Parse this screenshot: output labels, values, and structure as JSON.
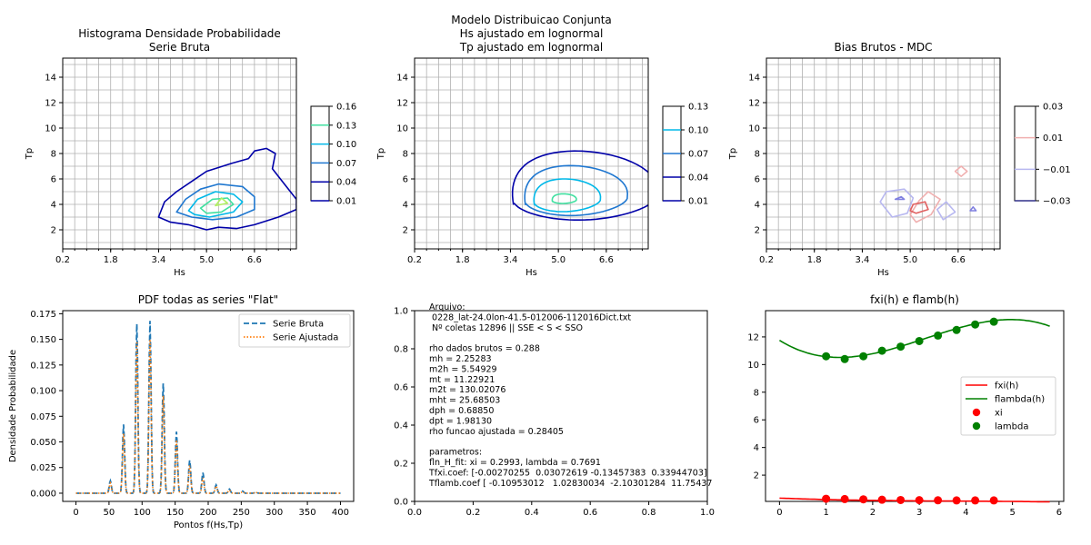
{
  "panels": {
    "p1": {
      "title": [
        "Histograma Densidade Probabilidade",
        "Serie Bruta"
      ],
      "xlabel": "Hs",
      "ylabel": "Tp",
      "colorbar_ticks": [
        "0.16",
        "0.13",
        "0.10",
        "0.07",
        "0.04",
        "0.01"
      ]
    },
    "p2": {
      "title": [
        "Modelo Distribuicao Conjunta",
        "Hs ajustado em lognormal",
        "Tp ajustado em lognormal"
      ],
      "xlabel": "Hs",
      "ylabel": "Tp",
      "colorbar_ticks": [
        "0.13",
        "0.10",
        "0.07",
        "0.04",
        "0.01"
      ]
    },
    "p3": {
      "title": [
        "Bias Brutos - MDC"
      ],
      "xlabel": "Hs",
      "ylabel": "Tp",
      "colorbar_ticks": [
        "0.03",
        "0.01",
        "−0.01",
        "−0.03"
      ]
    },
    "p4": {
      "title": [
        "PDF todas as series \"Flat\""
      ],
      "xlabel": "Pontos f(Hs,Tp)",
      "ylabel": "Densidade Probabilidade",
      "legend": [
        "Serie Bruta",
        "Serie Ajustada"
      ]
    },
    "p5": {
      "text_lines": [
        "Arquivo:",
        " 0228_lat-24.0lon-41.5-012006-112016Dict.txt",
        " Nº coletas 12896 || SSE < S < SSO",
        "",
        "rho dados brutos = 0.288",
        "mh = 2.25283",
        "m2h = 5.54929",
        "mt = 11.22921",
        "m2t = 130.02076",
        "mht = 25.68503",
        "dph = 0.68850",
        "dpt = 1.98130",
        "rho funcao ajustada = 0.28405",
        "",
        "parametros:",
        "fln_H_fit: xi = 0.2993, lambda = 0.7691",
        "Tfxi.coef: [-0.00270255  0.03072619 -0.13457383  0.33944703]",
        "Tflamb.coef [ -0.10953012   1.02830034  -2.10301284  11.75437"
      ]
    },
    "p6": {
      "title": [
        "fxi(h) e flamb(h)"
      ],
      "legend": [
        "fxi(h)",
        "flambda(h)",
        "xi",
        "lambda"
      ]
    }
  },
  "colors": {
    "blue_dashed": "#1f77b4",
    "orange_dotted": "#ff7f0e",
    "red": "#ff0000",
    "green": "#008000"
  },
  "chart_data": [
    {
      "id": "p1",
      "type": "contour",
      "xlim": [
        0.2,
        8.0
      ],
      "ylim": [
        0.5,
        15.5
      ],
      "xticks": [
        0.2,
        1.8,
        3.4,
        5.0,
        6.6
      ],
      "yticks": [
        2,
        4,
        6,
        8,
        10,
        12,
        14
      ],
      "grid": true,
      "levels": [
        0.01,
        0.04,
        0.07,
        0.1,
        0.13,
        0.16
      ],
      "contours": [
        {
          "level": 0.04,
          "color": "#0000a8",
          "points": [
            [
              3.4,
              3.0
            ],
            [
              3.6,
              4.2
            ],
            [
              4.0,
              5.0
            ],
            [
              4.5,
              5.8
            ],
            [
              5.0,
              6.6
            ],
            [
              5.8,
              7.2
            ],
            [
              6.4,
              7.6
            ],
            [
              6.6,
              8.2
            ],
            [
              7.0,
              8.4
            ],
            [
              7.3,
              8.0
            ],
            [
              7.2,
              6.8
            ],
            [
              7.6,
              5.6
            ],
            [
              8.0,
              4.4
            ],
            [
              8.0,
              3.6
            ],
            [
              7.4,
              3.0
            ],
            [
              6.6,
              2.4
            ],
            [
              6.0,
              2.1
            ],
            [
              5.4,
              2.2
            ],
            [
              5.0,
              2.0
            ],
            [
              4.4,
              2.4
            ],
            [
              3.8,
              2.6
            ],
            [
              3.4,
              3.0
            ]
          ]
        },
        {
          "level": 0.07,
          "color": "#1f77d0",
          "points": [
            [
              4.0,
              3.4
            ],
            [
              4.3,
              4.4
            ],
            [
              4.8,
              5.2
            ],
            [
              5.4,
              5.6
            ],
            [
              6.2,
              5.4
            ],
            [
              6.6,
              4.6
            ],
            [
              6.6,
              3.6
            ],
            [
              6.0,
              3.0
            ],
            [
              5.2,
              2.8
            ],
            [
              4.5,
              3.0
            ],
            [
              4.0,
              3.4
            ]
          ]
        },
        {
          "level": 0.1,
          "color": "#00b8e8",
          "points": [
            [
              4.4,
              3.5
            ],
            [
              4.7,
              4.4
            ],
            [
              5.3,
              5.0
            ],
            [
              5.9,
              4.8
            ],
            [
              6.2,
              4.2
            ],
            [
              5.9,
              3.4
            ],
            [
              5.1,
              3.0
            ],
            [
              4.6,
              3.2
            ],
            [
              4.4,
              3.5
            ]
          ]
        },
        {
          "level": 0.13,
          "color": "#40e0a0",
          "points": [
            [
              4.8,
              3.7
            ],
            [
              5.2,
              4.4
            ],
            [
              5.7,
              4.5
            ],
            [
              5.9,
              4.0
            ],
            [
              5.5,
              3.4
            ],
            [
              5.0,
              3.3
            ],
            [
              4.8,
              3.7
            ]
          ]
        },
        {
          "level": 0.16,
          "color": "#b0f060",
          "points": [
            [
              5.3,
              3.9
            ],
            [
              5.5,
              4.5
            ],
            [
              5.7,
              4.1
            ],
            [
              5.3,
              3.9
            ]
          ]
        }
      ]
    },
    {
      "id": "p2",
      "type": "contour",
      "xlim": [
        0.2,
        8.0
      ],
      "ylim": [
        0.5,
        15.5
      ],
      "xticks": [
        0.2,
        1.8,
        3.4,
        5.0,
        6.6
      ],
      "yticks": [
        2,
        4,
        6,
        8,
        10,
        12,
        14
      ],
      "grid": true,
      "levels": [
        0.01,
        0.04,
        0.07,
        0.1,
        0.13
      ],
      "contours": [
        {
          "level": 0.04,
          "color": "#0000a8",
          "ellipse": {
            "cx": 5.9,
            "cy": 4.4,
            "rx": 2.4,
            "ry": 3.6,
            "skew": 1.1
          }
        },
        {
          "level": 0.07,
          "color": "#1f77d0",
          "ellipse": {
            "cx": 5.6,
            "cy": 4.3,
            "rx": 1.7,
            "ry": 2.6,
            "skew": 0.9
          }
        },
        {
          "level": 0.1,
          "color": "#00b8e8",
          "ellipse": {
            "cx": 5.3,
            "cy": 4.2,
            "rx": 1.1,
            "ry": 1.7,
            "skew": 0.7
          }
        },
        {
          "level": 0.13,
          "color": "#40e0a0",
          "ellipse": {
            "cx": 5.2,
            "cy": 4.3,
            "rx": 0.4,
            "ry": 0.5,
            "skew": 0.2
          }
        }
      ]
    },
    {
      "id": "p3",
      "type": "contour",
      "xlim": [
        0.2,
        8.0
      ],
      "ylim": [
        0.5,
        15.5
      ],
      "xticks": [
        0.2,
        1.8,
        3.4,
        5.0,
        6.6
      ],
      "yticks": [
        2,
        4,
        6,
        8,
        10,
        12,
        14
      ],
      "grid": true,
      "levels": [
        -0.03,
        -0.01,
        0.01,
        0.03
      ],
      "contours": [
        {
          "level": -0.01,
          "color": "#b8b8f0",
          "points": [
            [
              4.0,
              4.2
            ],
            [
              4.2,
              5.0
            ],
            [
              4.8,
              5.2
            ],
            [
              5.1,
              4.5
            ],
            [
              4.9,
              3.3
            ],
            [
              4.4,
              3.0
            ],
            [
              4.0,
              4.2
            ]
          ]
        },
        {
          "level": -0.01,
          "color": "#b8b8f0",
          "points": [
            [
              5.9,
              3.6
            ],
            [
              6.2,
              4.2
            ],
            [
              6.5,
              3.4
            ],
            [
              6.1,
              2.8
            ],
            [
              5.9,
              3.6
            ]
          ]
        },
        {
          "level": -0.03,
          "color": "#8080e0",
          "points": [
            [
              4.5,
              4.4
            ],
            [
              4.7,
              4.6
            ],
            [
              4.8,
              4.4
            ],
            [
              4.5,
              4.4
            ]
          ]
        },
        {
          "level": -0.03,
          "color": "#8080e0",
          "points": [
            [
              7.0,
              3.5
            ],
            [
              7.1,
              3.8
            ],
            [
              7.2,
              3.5
            ],
            [
              7.0,
              3.5
            ]
          ]
        },
        {
          "level": 0.01,
          "color": "#f0b0b0",
          "points": [
            [
              5.0,
              3.2
            ],
            [
              5.3,
              4.3
            ],
            [
              5.6,
              5.0
            ],
            [
              6.0,
              4.4
            ],
            [
              5.7,
              3.2
            ],
            [
              5.2,
              2.6
            ],
            [
              5.0,
              3.2
            ]
          ]
        },
        {
          "level": 0.01,
          "color": "#f0b0b0",
          "points": [
            [
              6.5,
              6.6
            ],
            [
              6.7,
              7.0
            ],
            [
              6.9,
              6.6
            ],
            [
              6.7,
              6.2
            ],
            [
              6.5,
              6.6
            ]
          ]
        },
        {
          "level": 0.03,
          "color": "#e06060",
          "points": [
            [
              5.0,
              3.5
            ],
            [
              5.1,
              4.0
            ],
            [
              5.5,
              4.2
            ],
            [
              5.6,
              3.6
            ],
            [
              5.2,
              3.3
            ],
            [
              5.0,
              3.5
            ]
          ]
        }
      ]
    },
    {
      "id": "p4",
      "type": "line",
      "xlim": [
        -20,
        420
      ],
      "ylim": [
        -0.008,
        0.178
      ],
      "xticks": [
        0,
        50,
        100,
        150,
        200,
        250,
        300,
        350,
        400
      ],
      "yticks": [
        0.0,
        0.025,
        0.05,
        0.075,
        0.1,
        0.125,
        0.15,
        0.175
      ],
      "ytick_labels": [
        "0.000",
        "0.025",
        "0.050",
        "0.075",
        "0.100",
        "0.125",
        "0.150",
        "0.175"
      ],
      "grid": false,
      "legend_position": "top-right",
      "series": [
        {
          "name": "Serie Bruta",
          "style": "dashed",
          "color": "#1f77b4",
          "peaks": [
            [
              52,
              0.012
            ],
            [
              72,
              0.067
            ],
            [
              92,
              0.165
            ],
            [
              112,
              0.168
            ],
            [
              132,
              0.107
            ],
            [
              152,
              0.06
            ],
            [
              172,
              0.032
            ],
            [
              192,
              0.02
            ],
            [
              212,
              0.008
            ],
            [
              232,
              0.004
            ],
            [
              252,
              0.002
            ],
            [
              272,
              0.001
            ]
          ],
          "x_range": [
            0,
            400
          ]
        },
        {
          "name": "Serie Ajustada",
          "style": "dotted",
          "color": "#ff7f0e",
          "peaks": [
            [
              52,
              0.01
            ],
            [
              72,
              0.058
            ],
            [
              92,
              0.148
            ],
            [
              112,
              0.15
            ],
            [
              132,
              0.095
            ],
            [
              152,
              0.052
            ],
            [
              172,
              0.027
            ],
            [
              192,
              0.015
            ],
            [
              212,
              0.007
            ],
            [
              232,
              0.003
            ],
            [
              252,
              0.0015
            ],
            [
              272,
              0.0008
            ]
          ],
          "x_range": [
            0,
            400
          ]
        }
      ]
    },
    {
      "id": "p5",
      "type": "text",
      "xlim": [
        0.0,
        1.0
      ],
      "ylim": [
        0.0,
        1.0
      ],
      "xticks": [
        0.0,
        0.2,
        0.4,
        0.6,
        0.8,
        1.0
      ],
      "yticks": [
        0.0,
        0.2,
        0.4,
        0.6,
        0.8,
        1.0
      ],
      "xtick_labels": [
        "0.0",
        "0.2",
        "0.4",
        "0.6",
        "0.8",
        "1.0"
      ],
      "ytick_labels": [
        "0.0",
        "0.2",
        "0.4",
        "0.6",
        "0.8",
        "1.0"
      ]
    },
    {
      "id": "p6",
      "type": "line",
      "xlim": [
        -0.3,
        6.1
      ],
      "ylim": [
        0.1,
        13.9
      ],
      "xticks": [
        0,
        1,
        2,
        3,
        4,
        5,
        6
      ],
      "yticks": [
        2,
        4,
        6,
        8,
        10,
        12
      ],
      "grid": false,
      "legend_position": "center-right",
      "series": [
        {
          "name": "fxi(h)",
          "type": "line",
          "color": "#ff0000",
          "poly": [
            -0.00270255,
            0.03072619,
            -0.13457383,
            0.33944703
          ],
          "x_range": [
            0,
            5.8
          ]
        },
        {
          "name": "flambda(h)",
          "type": "line",
          "color": "#008000",
          "poly": [
            -0.10953012,
            1.02830034,
            -2.10301284,
            11.75437
          ],
          "x_range": [
            0,
            5.8
          ]
        },
        {
          "name": "xi",
          "type": "scatter",
          "color": "#ff0000",
          "x": [
            1.0,
            1.4,
            1.8,
            2.2,
            2.6,
            3.0,
            3.4,
            3.8,
            4.2,
            4.6
          ],
          "y": [
            0.29,
            0.27,
            0.25,
            0.22,
            0.2,
            0.19,
            0.18,
            0.17,
            0.17,
            0.17
          ]
        },
        {
          "name": "lambda",
          "type": "scatter",
          "color": "#008000",
          "x": [
            1.0,
            1.4,
            1.8,
            2.2,
            2.6,
            3.0,
            3.4,
            3.8,
            4.2,
            4.6
          ],
          "y": [
            10.6,
            10.4,
            10.6,
            11.0,
            11.3,
            11.7,
            12.1,
            12.5,
            12.9,
            13.1
          ]
        }
      ]
    }
  ]
}
